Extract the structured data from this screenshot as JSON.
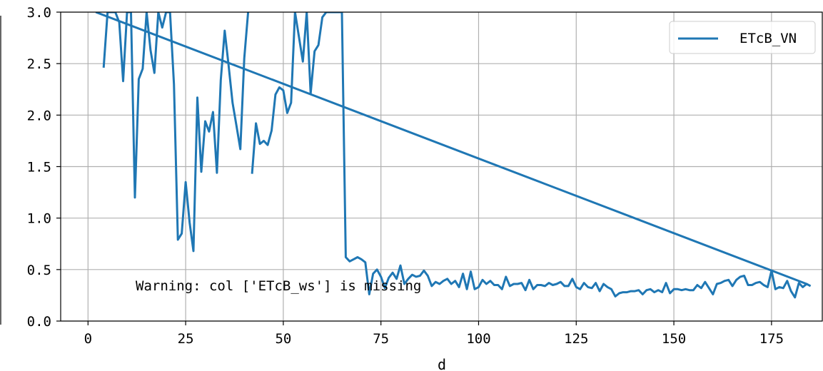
{
  "chart_data": {
    "type": "line",
    "xlabel": "d",
    "ylabel": "",
    "xlim": [
      -7,
      188
    ],
    "ylim": [
      0,
      3.0
    ],
    "grid": true,
    "legend_position": "top-right",
    "x_ticks": [
      0,
      25,
      50,
      75,
      100,
      125,
      150,
      175
    ],
    "x_tick_labels": [
      "0",
      "25",
      "50",
      "75",
      "100",
      "125",
      "150",
      "175"
    ],
    "y_ticks": [
      0,
      0.5,
      1.0,
      1.5,
      2.0,
      2.5,
      3.0
    ],
    "y_tick_labels": [
      "0.0",
      "0.5",
      "1.0",
      "1.5",
      "2.0",
      "2.5",
      "3.0"
    ],
    "annotation": "Warning: col ['ETcB_ws'] is missing",
    "series": [
      {
        "name": "ETcB_VN",
        "color": "#1f77b4",
        "segments": [
          [
            [
              4,
              2.46
            ],
            [
              5,
              3.0
            ],
            [
              6,
              3.0
            ],
            [
              7,
              3.0
            ],
            [
              8,
              2.9
            ],
            [
              9,
              2.33
            ],
            [
              10,
              3.0
            ],
            [
              11,
              3.0
            ],
            [
              12,
              1.2
            ],
            [
              13,
              2.35
            ],
            [
              14,
              2.45
            ],
            [
              15,
              3.0
            ],
            [
              16,
              2.63
            ],
            [
              17,
              2.41
            ],
            [
              18,
              3.0
            ],
            [
              19,
              2.85
            ],
            [
              20,
              3.0
            ],
            [
              21,
              3.0
            ],
            [
              22,
              2.3
            ],
            [
              23,
              0.79
            ],
            [
              24,
              0.85
            ],
            [
              25,
              1.35
            ],
            [
              26,
              0.96
            ],
            [
              27,
              0.68
            ],
            [
              28,
              2.17
            ],
            [
              29,
              1.45
            ],
            [
              30,
              1.94
            ],
            [
              31,
              1.84
            ],
            [
              32,
              2.03
            ],
            [
              33,
              1.44
            ],
            [
              34,
              2.34
            ],
            [
              35,
              2.82
            ],
            [
              36,
              2.48
            ],
            [
              37,
              2.12
            ],
            [
              38,
              1.9
            ],
            [
              39,
              1.67
            ],
            [
              40,
              2.55
            ],
            [
              41,
              3.0
            ]
          ],
          [
            [
              42,
              1.43
            ],
            [
              43,
              1.92
            ],
            [
              44,
              1.72
            ],
            [
              45,
              1.75
            ],
            [
              46,
              1.71
            ],
            [
              47,
              1.85
            ],
            [
              48,
              2.2
            ],
            [
              49,
              2.27
            ],
            [
              50,
              2.24
            ],
            [
              51,
              2.02
            ],
            [
              52,
              2.12
            ],
            [
              53,
              3.0
            ],
            [
              54,
              2.76
            ],
            [
              55,
              2.52
            ],
            [
              56,
              3.0
            ],
            [
              57,
              2.21
            ],
            [
              58,
              2.62
            ],
            [
              59,
              2.68
            ],
            [
              60,
              2.95
            ],
            [
              61,
              3.0
            ],
            [
              62,
              3.0
            ],
            [
              63,
              3.0
            ],
            [
              64,
              3.0
            ],
            [
              65,
              3.0
            ],
            [
              66,
              0.62
            ],
            [
              67,
              0.58
            ],
            [
              68,
              0.6
            ],
            [
              69,
              0.62
            ],
            [
              70,
              0.6
            ],
            [
              71,
              0.57
            ],
            [
              72,
              0.26
            ],
            [
              73,
              0.46
            ],
            [
              74,
              0.5
            ],
            [
              75,
              0.43
            ],
            [
              76,
              0.32
            ],
            [
              77,
              0.42
            ],
            [
              78,
              0.47
            ],
            [
              79,
              0.41
            ],
            [
              80,
              0.54
            ],
            [
              81,
              0.36
            ],
            [
              82,
              0.41
            ],
            [
              83,
              0.45
            ],
            [
              84,
              0.43
            ],
            [
              85,
              0.44
            ],
            [
              86,
              0.49
            ],
            [
              87,
              0.44
            ],
            [
              88,
              0.34
            ],
            [
              89,
              0.38
            ],
            [
              90,
              0.36
            ],
            [
              91,
              0.39
            ],
            [
              92,
              0.41
            ],
            [
              93,
              0.36
            ],
            [
              94,
              0.39
            ],
            [
              95,
              0.33
            ],
            [
              96,
              0.46
            ],
            [
              97,
              0.31
            ],
            [
              98,
              0.48
            ],
            [
              99,
              0.31
            ],
            [
              100,
              0.33
            ],
            [
              101,
              0.4
            ],
            [
              102,
              0.36
            ],
            [
              103,
              0.39
            ],
            [
              104,
              0.35
            ],
            [
              105,
              0.35
            ],
            [
              106,
              0.31
            ],
            [
              107,
              0.43
            ],
            [
              108,
              0.34
            ],
            [
              109,
              0.36
            ],
            [
              110,
              0.36
            ],
            [
              111,
              0.37
            ],
            [
              112,
              0.3
            ],
            [
              113,
              0.4
            ],
            [
              114,
              0.31
            ],
            [
              115,
              0.35
            ],
            [
              116,
              0.35
            ],
            [
              117,
              0.34
            ],
            [
              118,
              0.37
            ],
            [
              119,
              0.35
            ],
            [
              120,
              0.36
            ],
            [
              121,
              0.38
            ],
            [
              122,
              0.34
            ],
            [
              123,
              0.34
            ],
            [
              124,
              0.41
            ],
            [
              125,
              0.33
            ],
            [
              126,
              0.31
            ],
            [
              127,
              0.37
            ],
            [
              128,
              0.33
            ],
            [
              129,
              0.32
            ],
            [
              130,
              0.37
            ],
            [
              131,
              0.29
            ],
            [
              132,
              0.36
            ],
            [
              133,
              0.33
            ],
            [
              134,
              0.31
            ],
            [
              135,
              0.24
            ],
            [
              136,
              0.27
            ],
            [
              137,
              0.28
            ],
            [
              138,
              0.28
            ],
            [
              139,
              0.29
            ],
            [
              140,
              0.29
            ],
            [
              141,
              0.3
            ],
            [
              142,
              0.26
            ],
            [
              143,
              0.3
            ],
            [
              144,
              0.31
            ],
            [
              145,
              0.28
            ],
            [
              146,
              0.3
            ],
            [
              147,
              0.28
            ],
            [
              148,
              0.37
            ],
            [
              149,
              0.27
            ],
            [
              150,
              0.31
            ],
            [
              151,
              0.31
            ],
            [
              152,
              0.3
            ],
            [
              153,
              0.31
            ],
            [
              154,
              0.3
            ],
            [
              155,
              0.3
            ],
            [
              156,
              0.35
            ],
            [
              157,
              0.32
            ],
            [
              158,
              0.38
            ],
            [
              159,
              0.32
            ],
            [
              160,
              0.26
            ],
            [
              161,
              0.36
            ],
            [
              162,
              0.37
            ],
            [
              163,
              0.39
            ],
            [
              164,
              0.4
            ],
            [
              165,
              0.34
            ],
            [
              166,
              0.4
            ],
            [
              167,
              0.43
            ],
            [
              168,
              0.44
            ],
            [
              169,
              0.35
            ],
            [
              170,
              0.35
            ],
            [
              171,
              0.37
            ],
            [
              172,
              0.38
            ],
            [
              173,
              0.35
            ],
            [
              174,
              0.33
            ],
            [
              175,
              0.49
            ],
            [
              176,
              0.31
            ],
            [
              177,
              0.33
            ],
            [
              178,
              0.32
            ],
            [
              179,
              0.39
            ],
            [
              180,
              0.29
            ],
            [
              181,
              0.23
            ],
            [
              182,
              0.37
            ],
            [
              183,
              0.33
            ],
            [
              184,
              0.36
            ],
            [
              185,
              0.34
            ]
          ],
          [
            [
              2,
              3.0
            ],
            [
              184,
              0.36
            ]
          ]
        ]
      }
    ]
  }
}
